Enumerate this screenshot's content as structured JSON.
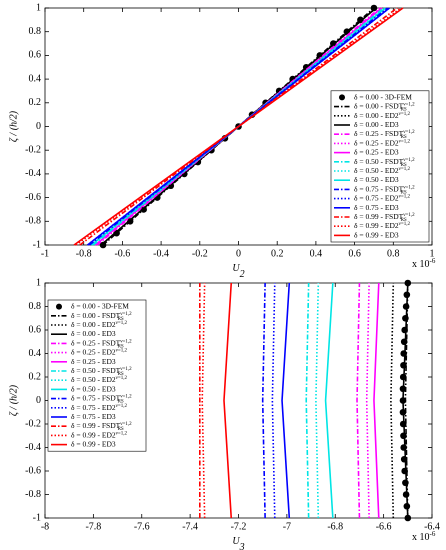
{
  "chart_data": [
    {
      "type": "line",
      "xlabel": "U",
      "xlabel_sub": "2",
      "ylabel": "ζ / (h/2)",
      "x_multiplier": "x 10",
      "x_exponent": "-6",
      "xlim": [
        -1,
        1
      ],
      "ylim": [
        -1,
        1
      ],
      "xticks": [
        -1,
        -0.8,
        -0.6,
        -0.4,
        -0.2,
        0,
        0.2,
        0.4,
        0.6,
        0.8,
        1
      ],
      "yticks": [
        -1,
        -0.8,
        -0.6,
        -0.4,
        -0.2,
        0,
        0.2,
        0.4,
        0.6,
        0.8,
        1
      ],
      "legend": "lower right",
      "series": [
        {
          "name": "δ = 0.00 - 3D-FEM",
          "color": "#000000",
          "marker": "o",
          "x": [
            -0.7,
            -0.63,
            -0.56,
            -0.49,
            -0.42,
            -0.35,
            -0.28,
            -0.21,
            -0.14,
            -0.07,
            0,
            0.07,
            0.14,
            0.21,
            0.28,
            0.35,
            0.42,
            0.49,
            0.56,
            0.63,
            0.7
          ],
          "y": [
            -1,
            -0.9,
            -0.8,
            -0.7,
            -0.6,
            -0.5,
            -0.4,
            -0.3,
            -0.2,
            -0.1,
            0,
            0.1,
            0.2,
            0.3,
            0.4,
            0.5,
            0.6,
            0.7,
            0.8,
            0.9,
            1
          ]
        },
        {
          "name": "δ = 0.00 - FSDT",
          "sub": "RS",
          "sup": "ν=1,2",
          "color": "#000000",
          "dash": "dashdot",
          "x": [
            -0.7,
            0.7
          ],
          "y": [
            -1,
            1
          ]
        },
        {
          "name": "δ = 0.00 - ED2",
          "sup": "ν=1,2",
          "color": "#000000",
          "dash": "dotted",
          "x": [
            -0.71,
            0.71
          ],
          "y": [
            -1,
            1
          ]
        },
        {
          "name": "δ = 0.00 - ED3",
          "color": "#000000",
          "dash": "solid",
          "x": [
            -0.71,
            0.71
          ],
          "y": [
            -1,
            1
          ]
        },
        {
          "name": "δ = 0.25 - FSDT",
          "sub": "RS",
          "sup": "ν=1,2",
          "color": "#ff00ff",
          "dash": "dashdot",
          "x": [
            -0.73,
            0.73
          ],
          "y": [
            -1,
            1
          ]
        },
        {
          "name": "δ = 0.25 - ED2",
          "sup": "ν=1,2",
          "color": "#ff00ff",
          "dash": "dotted",
          "x": [
            -0.74,
            0.74
          ],
          "y": [
            -1,
            1
          ]
        },
        {
          "name": "δ = 0.25 - ED3",
          "color": "#ff00ff",
          "dash": "solid",
          "x": [
            -0.74,
            0.74
          ],
          "y": [
            -1,
            1
          ]
        },
        {
          "name": "δ = 0.50 - FSDT",
          "sub": "RS",
          "sup": "ν=1,2",
          "color": "#00e5e5",
          "dash": "dashdot",
          "x": [
            -0.75,
            0.75
          ],
          "y": [
            -1,
            1
          ]
        },
        {
          "name": "δ = 0.50 - ED2",
          "sup": "ν=1,2",
          "color": "#00e5e5",
          "dash": "dotted",
          "x": [
            -0.76,
            0.76
          ],
          "y": [
            -1,
            1
          ]
        },
        {
          "name": "δ = 0.50 - ED3",
          "color": "#00e5e5",
          "dash": "solid",
          "x": [
            -0.76,
            0.76
          ],
          "y": [
            -1,
            1
          ]
        },
        {
          "name": "δ = 0.75 - FSDT",
          "sub": "RS",
          "sup": "ν=1,2",
          "color": "#0000ff",
          "dash": "dashdot",
          "x": [
            -0.77,
            0.77
          ],
          "y": [
            -1,
            1
          ]
        },
        {
          "name": "δ = 0.75 - ED2",
          "sup": "ν=1,2",
          "color": "#0000ff",
          "dash": "dotted",
          "x": [
            -0.78,
            0.78
          ],
          "y": [
            -1,
            1
          ]
        },
        {
          "name": "δ = 0.75 - ED3",
          "color": "#0000ff",
          "dash": "solid",
          "x": [
            -0.78,
            0.78
          ],
          "y": [
            -1,
            1
          ]
        },
        {
          "name": "δ = 0.99 - FSDT",
          "sub": "RS",
          "sup": "ν=1,2",
          "color": "#ff0000",
          "dash": "dashdot",
          "x": [
            -0.82,
            0.82
          ],
          "y": [
            -1,
            1
          ]
        },
        {
          "name": "δ = 0.99 - ED2",
          "sup": "ν=1,2",
          "color": "#ff0000",
          "dash": "dotted",
          "x": [
            -0.84,
            0.84
          ],
          "y": [
            -1,
            1
          ]
        },
        {
          "name": "δ = 0.99 - ED3",
          "color": "#ff0000",
          "dash": "solid",
          "x": [
            -0.85,
            0.85
          ],
          "y": [
            -1,
            1
          ]
        }
      ]
    },
    {
      "type": "line",
      "xlabel": "U",
      "xlabel_sub": "3",
      "ylabel": "ζ / (h/2)",
      "x_multiplier": "x 10",
      "x_exponent": "-6",
      "xlim": [
        -8,
        -6.4
      ],
      "ylim": [
        -1,
        1
      ],
      "xticks": [
        -8,
        -7.8,
        -7.6,
        -7.4,
        -7.2,
        -7,
        -6.8,
        -6.6,
        -6.4
      ],
      "yticks": [
        -1,
        -0.8,
        -0.6,
        -0.4,
        -0.2,
        0,
        0.2,
        0.4,
        0.6,
        0.8,
        1
      ],
      "legend": "upper left",
      "series": [
        {
          "name": "δ = 0.00 - 3D-FEM",
          "color": "#000000",
          "marker": "o",
          "x": [
            -6.5,
            -6.504,
            -6.507,
            -6.51,
            -6.513,
            -6.515,
            -6.517,
            -6.518,
            -6.519,
            -6.52,
            -6.52,
            -6.52,
            -6.519,
            -6.518,
            -6.517,
            -6.515,
            -6.513,
            -6.51,
            -6.507,
            -6.504,
            -6.5
          ],
          "y": [
            -1,
            -0.9,
            -0.8,
            -0.7,
            -0.6,
            -0.5,
            -0.4,
            -0.3,
            -0.2,
            -0.1,
            0,
            0.1,
            0.2,
            0.3,
            0.4,
            0.5,
            0.6,
            0.7,
            0.8,
            0.9,
            1
          ]
        },
        {
          "name": "δ = 0.00 - FSDT",
          "sub": "RS",
          "sup": "ν=1,2",
          "color": "#000000",
          "dash": "dashdot",
          "x": [
            -6.5,
            -6.51,
            -6.5
          ],
          "y": [
            -1,
            0,
            1
          ]
        },
        {
          "name": "δ = 0.00 - ED2",
          "sup": "ν=1,2",
          "color": "#000000",
          "dash": "dotted",
          "x": [
            -6.56,
            -6.57,
            -6.56
          ],
          "y": [
            -1,
            0,
            1
          ]
        },
        {
          "name": "δ = 0.00 - ED3",
          "color": "#000000",
          "dash": "solid",
          "x": [
            -6.5,
            -6.52,
            -6.5
          ],
          "y": [
            -1,
            0,
            1
          ]
        },
        {
          "name": "δ = 0.25 - FSDT",
          "sub": "RS",
          "sup": "ν=1,2",
          "color": "#ff00ff",
          "dash": "dashdot",
          "x": [
            -6.7,
            -6.71,
            -6.7
          ],
          "y": [
            -1,
            0,
            1
          ]
        },
        {
          "name": "δ = 0.25 - ED2",
          "sup": "ν=1,2",
          "color": "#ff00ff",
          "dash": "dotted",
          "x": [
            -6.66,
            -6.67,
            -6.66
          ],
          "y": [
            -1,
            0,
            1
          ]
        },
        {
          "name": "δ = 0.25 - ED3",
          "color": "#ff00ff",
          "dash": "solid",
          "x": [
            -6.62,
            -6.64,
            -6.62
          ],
          "y": [
            -1,
            0,
            1
          ]
        },
        {
          "name": "δ = 0.50 - FSDT",
          "sub": "RS",
          "sup": "ν=1,2",
          "color": "#00e5e5",
          "dash": "dashdot",
          "x": [
            -6.91,
            -6.92,
            -6.91
          ],
          "y": [
            -1,
            0,
            1
          ]
        },
        {
          "name": "δ = 0.50 - ED2",
          "sup": "ν=1,2",
          "color": "#00e5e5",
          "dash": "dotted",
          "x": [
            -6.87,
            -6.88,
            -6.87
          ],
          "y": [
            -1,
            0,
            1
          ]
        },
        {
          "name": "δ = 0.50 - ED3",
          "color": "#00e5e5",
          "dash": "solid",
          "x": [
            -6.81,
            -6.84,
            -6.81
          ],
          "y": [
            -1,
            0,
            1
          ]
        },
        {
          "name": "δ = 0.75 - FSDT",
          "sub": "RS",
          "sup": "ν=1,2",
          "color": "#0000ff",
          "dash": "dashdot",
          "x": [
            -7.09,
            -7.1,
            -7.09
          ],
          "y": [
            -1,
            0,
            1
          ]
        },
        {
          "name": "δ = 0.75 - ED2",
          "sup": "ν=1,2",
          "color": "#0000ff",
          "dash": "dotted",
          "x": [
            -7.05,
            -7.06,
            -7.05
          ],
          "y": [
            -1,
            0,
            1
          ]
        },
        {
          "name": "δ = 0.75 - ED3",
          "color": "#0000ff",
          "dash": "solid",
          "x": [
            -6.99,
            -7.02,
            -6.99
          ],
          "y": [
            -1,
            0,
            1
          ]
        },
        {
          "name": "δ = 0.99 - FSDT",
          "sub": "RS",
          "sup": "ν=1,2",
          "color": "#ff0000",
          "dash": "dashdot",
          "x": [
            -7.36,
            -7.36,
            -7.36
          ],
          "y": [
            -1,
            0,
            1
          ]
        },
        {
          "name": "δ = 0.99 - ED2",
          "sup": "ν=1,2",
          "color": "#ff0000",
          "dash": "dotted",
          "x": [
            -7.34,
            -7.35,
            -7.34
          ],
          "y": [
            -1,
            0,
            1
          ]
        },
        {
          "name": "δ = 0.99 - ED3",
          "color": "#ff0000",
          "dash": "solid",
          "x": [
            -7.23,
            -7.26,
            -7.23
          ],
          "y": [
            -1,
            0,
            1
          ]
        }
      ]
    }
  ]
}
